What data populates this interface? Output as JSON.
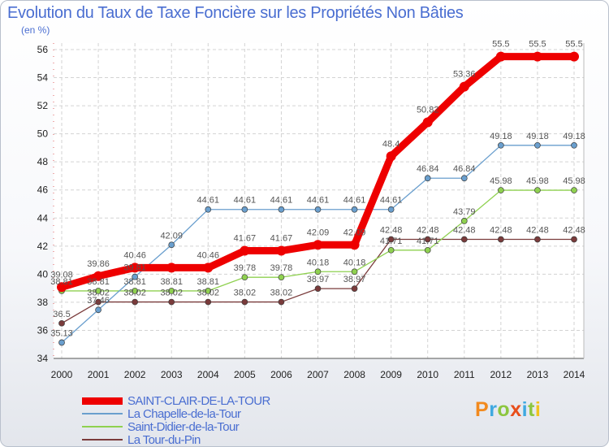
{
  "chart_data": {
    "type": "line",
    "title": "Evolution du Taux de Taxe Foncière sur les Propriétés Non Bâties",
    "ylabel": "(en %)",
    "xlabel": "",
    "x": [
      "2000",
      "2001",
      "2002",
      "2003",
      "2004",
      "2005",
      "2006",
      "2007",
      "2008",
      "2009",
      "2010",
      "2011",
      "2012",
      "2013",
      "2014"
    ],
    "ylim": [
      34,
      56
    ],
    "yticks": [
      34,
      36,
      38,
      40,
      42,
      44,
      46,
      48,
      50,
      52,
      54,
      56
    ],
    "grid": true,
    "series": [
      {
        "name": "SAINT-CLAIR-DE-LA-TOUR",
        "color": "#ee0000",
        "values": [
          39.08,
          39.86,
          40.46,
          40.46,
          40.46,
          41.67,
          41.67,
          42.09,
          42.09,
          48.4,
          50.82,
          53.36,
          55.5,
          55.5,
          55.5
        ],
        "labels": [
          "39.08",
          "39.86",
          "40.46",
          "",
          "40.46",
          "41.67",
          "41.67",
          "42.09",
          "42.09",
          "48.4",
          "50.82",
          "53.36",
          "55.5",
          "55.5",
          "55.5"
        ]
      },
      {
        "name": "La Chapelle-de-la-Tour",
        "color": "#6a9fce",
        "values": [
          35.13,
          37.46,
          39.81,
          42.09,
          44.61,
          44.61,
          44.61,
          44.61,
          44.61,
          44.61,
          46.84,
          46.84,
          49.18,
          49.18,
          49.18
        ],
        "labels": [
          "35.13",
          "37.46",
          "39.81",
          "42.09",
          "44.61",
          "44.61",
          "44.61",
          "44.61",
          "44.61",
          "44.61",
          "46.84",
          "46.84",
          "49.18",
          "49.18",
          "49.18"
        ]
      },
      {
        "name": "Saint-Didier-de-la-Tour",
        "color": "#8fd150",
        "values": [
          38.81,
          38.81,
          38.81,
          38.81,
          38.81,
          39.78,
          39.78,
          40.18,
          40.18,
          41.71,
          41.71,
          43.79,
          45.98,
          45.98,
          45.98
        ],
        "labels": [
          "38.81",
          "38.81",
          "38.81",
          "38.81",
          "38.81",
          "39.78",
          "39.78",
          "40.18",
          "40.18",
          "41.71",
          "41.71",
          "43.79",
          "45.98",
          "45.98",
          "45.98"
        ]
      },
      {
        "name": "La Tour-du-Pin",
        "color": "#7a3b3b",
        "values": [
          36.5,
          38.02,
          38.02,
          38.02,
          38.02,
          38.02,
          38.02,
          38.97,
          38.97,
          42.48,
          42.48,
          42.48,
          42.48,
          42.48,
          42.48
        ],
        "labels": [
          "36.5",
          "38.02",
          "38.02",
          "38.02",
          "38.02",
          "38.02",
          "38.02",
          "38.97",
          "38.97",
          "42.48",
          "42.48",
          "42.48",
          "42.48",
          "42.48",
          "42.48"
        ]
      }
    ]
  },
  "brand": {
    "text": "Proxiti",
    "colors": [
      "#f28a1e",
      "#3fa9e0",
      "#8cc63f",
      "#e84e1b",
      "#3fa9e0",
      "#8cc63f",
      "#f2c21e"
    ]
  }
}
